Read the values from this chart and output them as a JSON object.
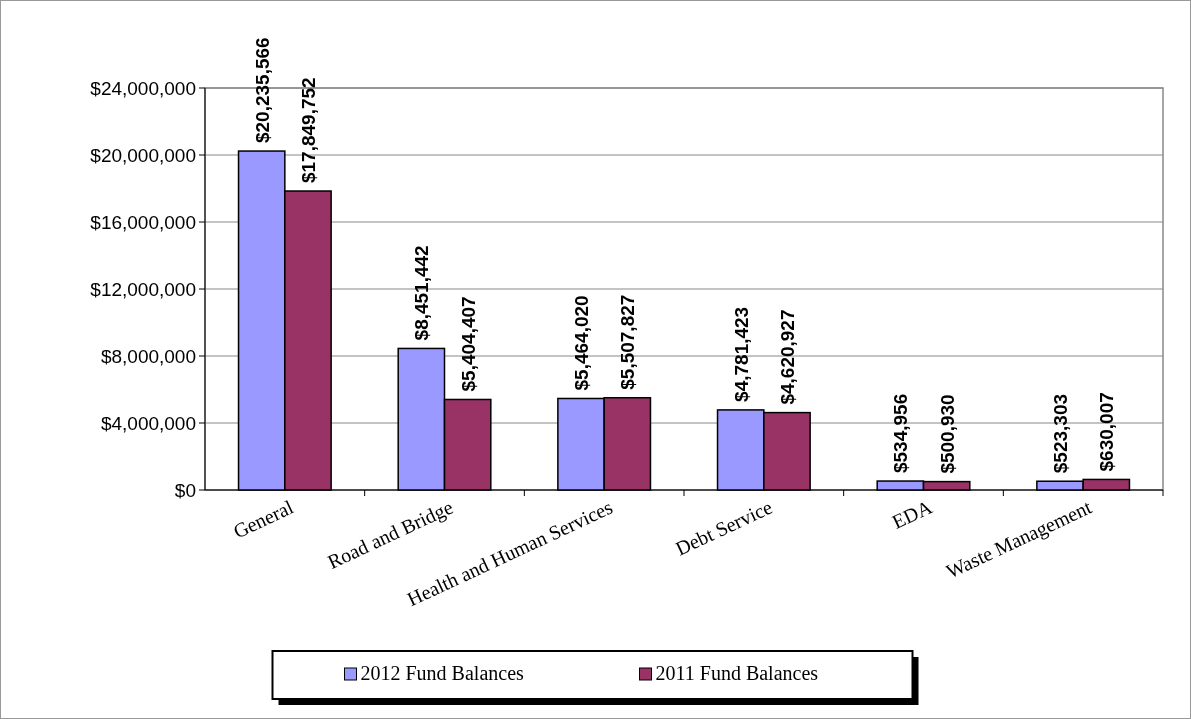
{
  "chart_data": {
    "type": "bar",
    "categories": [
      "General",
      "Road and Bridge",
      "Health and Human Services",
      "Debt Service",
      "EDA",
      "Waste Management"
    ],
    "series": [
      {
        "name": "2012 Fund Balances",
        "color": "#9999ff",
        "values": [
          20235566,
          8451442,
          5464020,
          4781423,
          534956,
          523303
        ],
        "value_labels": [
          "$20,235,566",
          "$8,451,442",
          "$5,464,020",
          "$4,781,423",
          "$534,956",
          "$523,303"
        ]
      },
      {
        "name": "2011 Fund Balances",
        "color": "#993366",
        "values": [
          17849752,
          5404407,
          5507827,
          4620927,
          500930,
          630007
        ],
        "value_labels": [
          "$17,849,752",
          "$5,404,407",
          "$5,507,827",
          "$4,620,927",
          "$500,930",
          "$630,007"
        ]
      }
    ],
    "ylim": [
      0,
      24000000
    ],
    "yticks": [
      {
        "value": 0,
        "label": "$0"
      },
      {
        "value": 4000000,
        "label": "$4,000,000"
      },
      {
        "value": 8000000,
        "label": "$8,000,000"
      },
      {
        "value": 12000000,
        "label": "$12,000,000"
      },
      {
        "value": 16000000,
        "label": "$16,000,000"
      },
      {
        "value": 20000000,
        "label": "$20,000,000"
      },
      {
        "value": 24000000,
        "label": "$24,000,000"
      }
    ],
    "grid": "y",
    "legend": "bottom"
  }
}
